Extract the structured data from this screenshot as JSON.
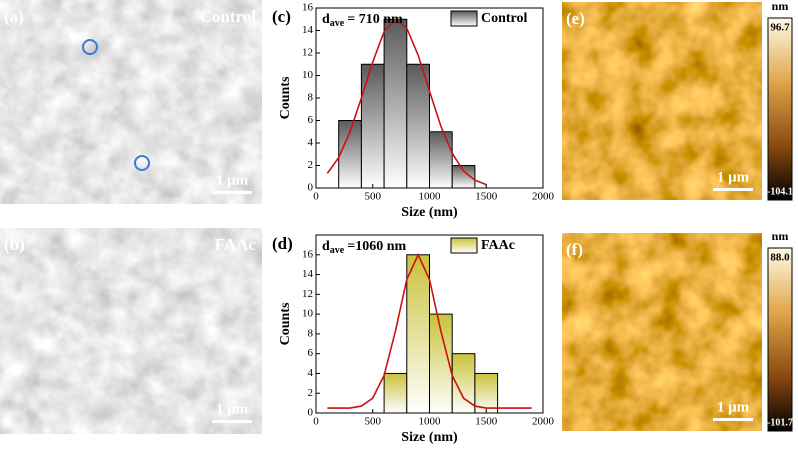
{
  "chart_data": [
    {
      "type": "histogram",
      "panel": "(c)",
      "annotation": {
        "main": "d",
        "sub": "ave",
        "rest": "= 710 nm"
      },
      "bins": [
        200,
        400,
        600,
        800,
        1000,
        1200,
        1400
      ],
      "series": [
        {
          "name": "Control",
          "color": "#5a5a5a",
          "values": [
            6,
            11,
            15,
            11,
            5,
            2
          ]
        }
      ],
      "fit": {
        "color": "#cc1111",
        "x": [
          100,
          200,
          300,
          400,
          500,
          600,
          700,
          800,
          900,
          1000,
          1100,
          1200,
          1300,
          1400,
          1500
        ],
        "values": [
          1.3,
          2.7,
          5.0,
          8.0,
          11.2,
          13.9,
          15.0,
          14.2,
          11.8,
          8.6,
          5.5,
          3.1,
          1.5,
          0.7,
          0.3
        ]
      },
      "xlabel": "Size (nm)",
      "ylabel": "Counts",
      "xlim": [
        0,
        2000
      ],
      "xticks": [
        0,
        500,
        1000,
        1500,
        2000
      ],
      "ylim": [
        0,
        16
      ],
      "yticks": [
        0,
        2,
        4,
        6,
        8,
        10,
        12,
        14,
        16
      ]
    },
    {
      "type": "histogram",
      "panel": "(d)",
      "annotation": {
        "main": "d",
        "sub": "ave",
        "rest": "=1060 nm"
      },
      "bins": [
        600,
        800,
        1000,
        1200,
        1400,
        1600
      ],
      "series": [
        {
          "name": "FAAc",
          "color": "#c9c23a",
          "values": [
            4,
            16,
            10,
            6,
            4
          ]
        }
      ],
      "fit": {
        "color": "#cc1111",
        "x": [
          100,
          200,
          300,
          400,
          500,
          600,
          700,
          800,
          900,
          1000,
          1100,
          1200,
          1300,
          1400,
          1500,
          1600,
          1700,
          1800,
          1900
        ],
        "values": [
          0.5,
          0.5,
          0.5,
          0.7,
          1.5,
          3.8,
          8.3,
          13.5,
          16.0,
          13.5,
          8.3,
          3.8,
          1.5,
          0.7,
          0.5,
          0.5,
          0.5,
          0.5,
          0.5
        ]
      },
      "xlabel": "Size (nm)",
      "ylabel": "Counts",
      "xlim": [
        0,
        2000
      ],
      "xticks": [
        0,
        500,
        1000,
        1500,
        2000
      ],
      "ylim": [
        0,
        18
      ],
      "yticks": [
        0,
        2,
        4,
        6,
        8,
        10,
        12,
        14,
        16
      ]
    }
  ],
  "sem": [
    {
      "label": "(a)",
      "tag": "Control",
      "scale": "1 μm"
    },
    {
      "label": "(b)",
      "tag": "FAAc",
      "scale": "1 μm"
    }
  ],
  "afm": [
    {
      "label": "(e)",
      "scale": "1 μm",
      "unit": "nm",
      "max": "96.7",
      "min": "-104.1"
    },
    {
      "label": "(f)",
      "scale": "1 μm",
      "unit": "nm",
      "max": "88.0",
      "min": "-101.7"
    }
  ]
}
